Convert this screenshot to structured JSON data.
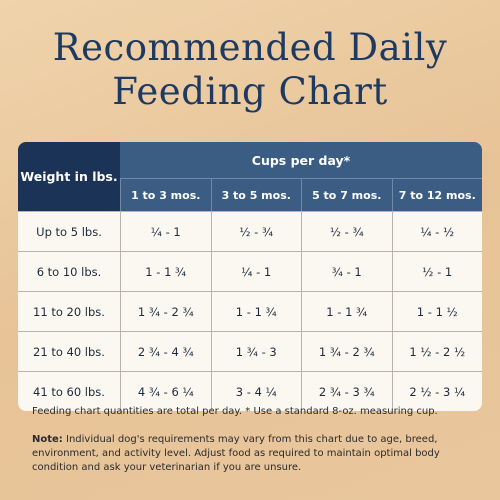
{
  "header": {
    "title_line1": "Recommended Daily",
    "title_line2": "Feeding Chart"
  },
  "table": {
    "weight_header": "Weight in lbs.",
    "cups_header": "Cups per day*",
    "columns": [
      "1 to 3 mos.",
      "3 to 5 mos.",
      "5 to 7 mos.",
      "7 to 12 mos."
    ],
    "rows": [
      [
        "Up to 5 lbs.",
        "¼ - 1",
        "½ - ¾",
        "½ - ¾",
        "¼ - ½"
      ],
      [
        "6 to 10 lbs.",
        "1 - 1 ¾",
        "¼ - 1",
        "¾ - 1",
        "½ - 1"
      ],
      [
        "11 to 20 lbs.",
        "1 ¾ - 2 ¾",
        "1 - 1 ¾",
        "1 - 1 ¾",
        "1 - 1 ½"
      ],
      [
        "21 to 40 lbs.",
        "2 ¾ - 4 ¾",
        "1 ¾ - 3",
        "1 ¾ - 2 ¾",
        "1 ½ - 2 ½"
      ],
      [
        "41 to 60 lbs.",
        "4 ¾ - 6 ¼",
        "3 - 4 ¼",
        "2 ¾ - 3 ¾",
        "2 ½ - 3 ¼"
      ]
    ]
  },
  "footnote": "Feeding chart quantities are total per day. * Use a standard 8-oz. measuring cup.",
  "note": {
    "label": "Note:",
    "text": "Individual dog's requirements may vary from this chart due to age, breed, environment, and activity level. Adjust food as required to maintain optimal body condition and ask your veterinarian if you are unsure."
  }
}
